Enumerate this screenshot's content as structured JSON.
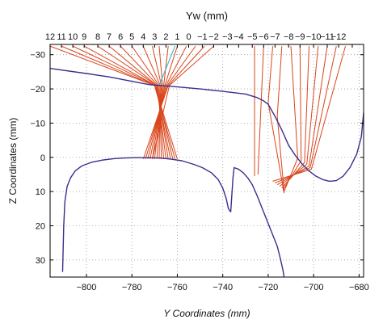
{
  "chart_data": {
    "type": "line",
    "title": "",
    "xlabel": "Y Coordinates (mm)",
    "ylabel": "Z Coordinates (mm)",
    "top_xlabel": "Yw (mm)",
    "xlim": [
      -816,
      -678
    ],
    "ylim": [
      -33,
      35
    ],
    "y_inverted": true,
    "grid": true,
    "grid_style": "dotted",
    "x_ticks": [
      -800,
      -780,
      -760,
      -740,
      -720,
      -700,
      -680
    ],
    "x_tick_labels": [
      "−800",
      "−780",
      "−760",
      "−740",
      "−720",
      "−700",
      "−680"
    ],
    "y_ticks": [
      -30,
      -20,
      -10,
      0,
      10,
      20,
      30
    ],
    "y_tick_labels": [
      "−30",
      "−20",
      "−10",
      "0",
      "10",
      "20",
      "30"
    ],
    "top_ticks": [
      -816,
      -811,
      -806,
      -801,
      -795,
      -790,
      -785,
      -780,
      -775,
      -770,
      -765,
      -760,
      -755,
      -749,
      -744,
      -738,
      -733,
      -727,
      -722,
      -717,
      -711,
      -706,
      -700,
      -694,
      -689,
      -683,
      -678
    ],
    "top_tick_labels": [
      "12",
      "11",
      "10",
      "9",
      "8",
      "7",
      "6",
      "5",
      "4",
      "3",
      "2",
      "1",
      "0",
      "−1",
      "−2",
      "−3",
      "−4",
      "−5",
      "−6",
      "−7",
      "−8",
      "−9",
      "−10",
      "−11",
      "−12",
      "",
      ""
    ],
    "colors": {
      "profile": "#3a2f8c",
      "rays": "#d9451c",
      "axis": "#000000",
      "grid": "#9a9a9a",
      "accent_ray": "#2ab0c8"
    },
    "series": [
      {
        "name": "",
        "kind": "upper-profile",
        "x": [
          -816,
          -800,
          -790,
          -780,
          -772,
          -768,
          -760,
          -750,
          -740,
          -730,
          -725,
          -722,
          -720,
          -717,
          -714,
          -711,
          -708,
          -705,
          -702,
          -699,
          -696,
          -693,
          -690,
          -687,
          -684,
          -681,
          -679,
          -678
        ],
        "y": [
          -26,
          -24.5,
          -23.5,
          -22.2,
          -21.2,
          -21,
          -20.6,
          -20,
          -19.3,
          -18.5,
          -17.5,
          -16.5,
          -15.5,
          -12,
          -8,
          -3.5,
          -0.5,
          2,
          4,
          5.5,
          6.5,
          7,
          6.8,
          5.5,
          3,
          -1,
          -6,
          -13
        ]
      },
      {
        "name": "",
        "kind": "lower-profile-left",
        "x": [
          -810.5,
          -810,
          -809.5,
          -808.5,
          -807,
          -805,
          -802,
          -798,
          -793,
          -788,
          -783,
          -778,
          -773,
          -768,
          -763,
          -758,
          -753,
          -749,
          -745,
          -742,
          -740,
          -738.5,
          -737.5,
          -736.5
        ],
        "y": [
          33.5,
          20,
          13,
          8.5,
          6,
          4,
          2.5,
          1.5,
          0.8,
          0.4,
          0.2,
          0.1,
          0.1,
          0.2,
          0.5,
          1,
          2,
          3,
          4.5,
          6.5,
          9,
          12,
          15,
          16
        ]
      },
      {
        "name": "",
        "kind": "lower-profile-right",
        "x": [
          -736.5,
          -735.5,
          -735,
          -733,
          -731,
          -729,
          -727,
          -725,
          -722,
          -719,
          -716,
          -714.5,
          -713.5,
          -713
        ],
        "y": [
          16,
          6,
          3,
          3.5,
          4.5,
          6,
          8,
          11,
          16,
          21,
          26,
          30,
          33,
          35
        ]
      }
    ],
    "rays": [
      {
        "group": "left",
        "from": [
          -816,
          -32.5
        ],
        "to": [
          -770,
          -21
        ],
        "to2": [
          -760,
          0.5
        ]
      },
      {
        "group": "left",
        "from": [
          -811,
          -32.5
        ],
        "to": [
          -770,
          -21
        ],
        "to2": [
          -761,
          0.5
        ]
      },
      {
        "group": "left",
        "from": [
          -806,
          -32.5
        ],
        "to": [
          -769.5,
          -21
        ],
        "to2": [
          -762,
          0.5
        ]
      },
      {
        "group": "left",
        "from": [
          -801,
          -32.5
        ],
        "to": [
          -769.5,
          -21
        ],
        "to2": [
          -763,
          0.5
        ]
      },
      {
        "group": "left",
        "from": [
          -795,
          -32.5
        ],
        "to": [
          -769,
          -21
        ],
        "to2": [
          -764,
          0.5
        ]
      },
      {
        "group": "left",
        "from": [
          -790,
          -32.5
        ],
        "to": [
          -769,
          -21
        ],
        "to2": [
          -765,
          0.5
        ]
      },
      {
        "group": "left",
        "from": [
          -785,
          -32.5
        ],
        "to": [
          -768.5,
          -21
        ],
        "to2": [
          -766,
          0.5
        ]
      },
      {
        "group": "left",
        "from": [
          -780,
          -32.5
        ],
        "to": [
          -768,
          -21
        ],
        "to2": [
          -767,
          0.5
        ]
      },
      {
        "group": "left",
        "from": [
          -775,
          -32.5
        ],
        "to": [
          -767.5,
          -21
        ],
        "to2": [
          -768,
          0.5
        ]
      },
      {
        "group": "left",
        "from": [
          -771,
          -32.5
        ],
        "to": [
          -767,
          -21
        ],
        "to2": [
          -769,
          0.5
        ]
      },
      {
        "group": "left",
        "from": [
          -768,
          -32.5
        ],
        "to": [
          -766.5,
          -21
        ],
        "to2": [
          -770,
          0.5
        ]
      },
      {
        "group": "left",
        "from": [
          -764,
          -32.5
        ],
        "to": [
          -766,
          -21
        ],
        "to2": [
          -771,
          0.5
        ]
      },
      {
        "group": "left",
        "from": [
          -760,
          -32.5
        ],
        "to": [
          -765.5,
          -21
        ],
        "to2": [
          -772,
          0.5
        ]
      },
      {
        "group": "left",
        "from": [
          -756,
          -32.5
        ],
        "to": [
          -765,
          -21
        ],
        "to2": [
          -773,
          0.5
        ]
      },
      {
        "group": "left",
        "from": [
          -752,
          -32.5
        ],
        "to": [
          -764.5,
          -21
        ],
        "to2": [
          -774,
          0.5
        ]
      },
      {
        "group": "left",
        "from": [
          -748,
          -32.5
        ],
        "to": [
          -764,
          -21
        ],
        "to2": [
          -775,
          0.5
        ]
      },
      {
        "group": "left",
        "from": [
          -744,
          -32.5
        ],
        "to": [
          -763.5,
          -21
        ],
        "to2": [
          -771,
          0.5
        ]
      },
      {
        "group": "right",
        "from": [
          -726,
          -32.5
        ],
        "to": [
          -726,
          5.5
        ],
        "to2": null
      },
      {
        "group": "right",
        "from": [
          -722,
          -32.5
        ],
        "to": [
          -724.5,
          5
        ],
        "to2": null
      },
      {
        "group": "right",
        "from": [
          -718,
          -32.5
        ],
        "to": [
          -720,
          -16
        ],
        "to2": [
          -713,
          10.5
        ]
      },
      {
        "group": "right",
        "from": [
          -714,
          -32.5
        ],
        "to": [
          -716,
          -12
        ],
        "to2": [
          -713,
          10
        ]
      },
      {
        "group": "right",
        "from": [
          -710,
          -32.5
        ],
        "to": [
          -707,
          0.2
        ],
        "to2": [
          -713,
          10
        ]
      },
      {
        "group": "right",
        "from": [
          -706,
          -32.5
        ],
        "to": [
          -705.5,
          1
        ],
        "to2": [
          -713.5,
          9.5
        ]
      },
      {
        "group": "right",
        "from": [
          -702,
          -32.5
        ],
        "to": [
          -704,
          1.5
        ],
        "to2": [
          -714,
          9
        ]
      },
      {
        "group": "right",
        "from": [
          -698,
          -32.5
        ],
        "to": [
          -703,
          2
        ],
        "to2": [
          -715,
          8.5
        ]
      },
      {
        "group": "right",
        "from": [
          -694,
          -32.5
        ],
        "to": [
          -702,
          2.5
        ],
        "to2": [
          -716,
          8
        ]
      },
      {
        "group": "right",
        "from": [
          -690,
          -32.5
        ],
        "to": [
          -701.5,
          3
        ],
        "to2": [
          -717,
          7.5
        ]
      },
      {
        "group": "right",
        "from": [
          -686,
          -32.5
        ],
        "to": [
          -701,
          3.5
        ],
        "to2": [
          -718,
          7
        ]
      }
    ],
    "accent_ray": {
      "from": [
        -761,
        -32.5
      ],
      "to": [
        -768,
        -21
      ]
    }
  }
}
